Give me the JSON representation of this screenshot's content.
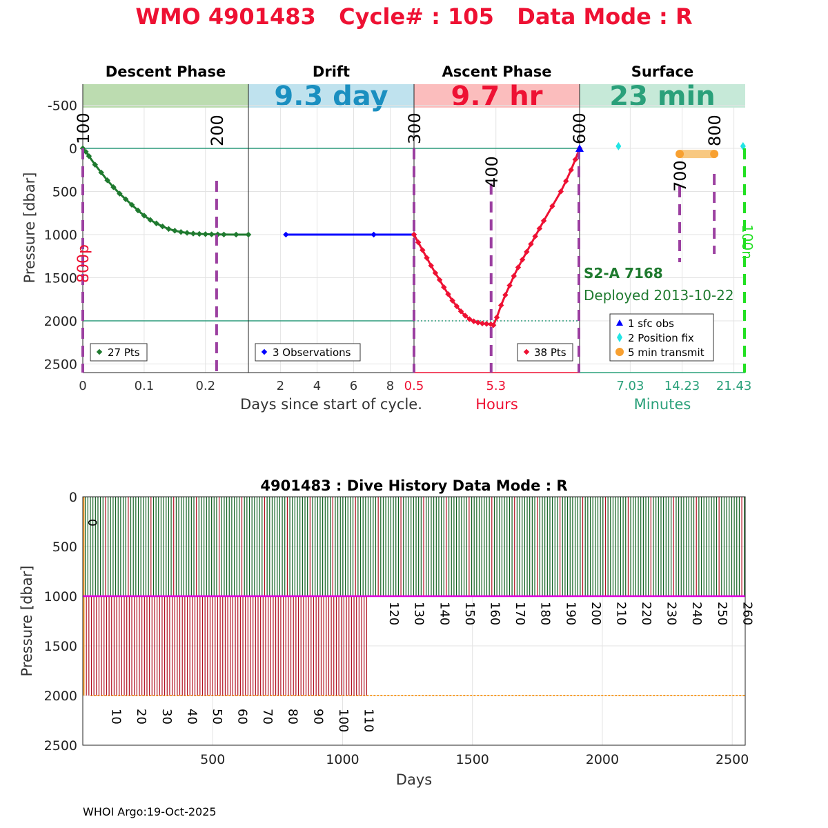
{
  "header": {
    "title": "WMO 4901483   Cycle# : 105   Data Mode : R",
    "footer": "WHOI Argo:19-Oct-2025"
  },
  "colors": {
    "title": "#ee1133",
    "descent": "#1f7a2f",
    "drift": "#0000ff",
    "ascent": "#ee1133",
    "surface_text": "#2aa07a",
    "drift_text": "#1a8fc0",
    "purple": "#9b3fa0",
    "orange": "#f8a030",
    "cyan": "#22e5e5",
    "green_dash": "#22e022",
    "magenta": "#e000e0",
    "dark_red": "#b01020",
    "dark_green": "#106020"
  },
  "phases": [
    {
      "name": "Descent Phase",
      "label": "",
      "band_color": "#bcdcb0"
    },
    {
      "name": "Drift",
      "label": "9.3 day",
      "band_color": "#bfe2ee"
    },
    {
      "name": "Ascent Phase",
      "label": "9.7 hr",
      "band_color": "#fbbdbd"
    },
    {
      "name": "Surface",
      "label": "23 min",
      "band_color": "#c6e9d8"
    }
  ],
  "chart_data": [
    {
      "type": "line",
      "title": "WMO 4901483   Cycle# : 105   Data Mode : R",
      "ylabel": "Pressure [dbar]",
      "ylim": [
        -650,
        2600
      ],
      "yticks": [
        -500,
        0,
        500,
        1000,
        1500,
        2000,
        2500
      ],
      "ref_lines": [
        0,
        2000
      ],
      "panels": [
        {
          "name": "Descent Phase",
          "xlim": [
            0,
            0.27
          ],
          "xticks": [
            {
              "v": 0,
              "label": "0"
            },
            {
              "v": 0.1,
              "label": "0.1"
            },
            {
              "v": 0.2,
              "label": "0.2"
            }
          ],
          "series": [
            {
              "name": "27 Pts",
              "x": [
                0,
                0.005,
                0.01,
                0.02,
                0.03,
                0.04,
                0.05,
                0.06,
                0.07,
                0.08,
                0.09,
                0.1,
                0.11,
                0.12,
                0.13,
                0.14,
                0.15,
                0.16,
                0.17,
                0.18,
                0.19,
                0.2,
                0.21,
                0.22,
                0.23,
                0.25,
                0.27
              ],
              "y": [
                0,
                40,
                90,
                190,
                280,
                370,
                450,
                525,
                590,
                655,
                720,
                780,
                830,
                870,
                905,
                935,
                955,
                970,
                980,
                988,
                992,
                995,
                997,
                998,
                999,
                1000,
                1000
              ]
            }
          ],
          "legend": "27 Pts",
          "markers": [
            {
              "x": 0,
              "label": "100"
            },
            {
              "x": 0.217,
              "label": "200"
            }
          ],
          "annotation": "800p"
        },
        {
          "name": "Drift",
          "xlim": [
            0.25,
            9.3
          ],
          "xticks": [
            {
              "v": 2,
              "label": "2"
            },
            {
              "v": 4,
              "label": "4"
            },
            {
              "v": 6,
              "label": "6"
            },
            {
              "v": 8,
              "label": "8"
            }
          ],
          "series": [
            {
              "name": "3 Observations",
              "x": [
                2.3,
                7.1,
                9.3
              ],
              "y": [
                1000,
                1000,
                1000
              ]
            }
          ],
          "legend": "3 Observations"
        },
        {
          "name": "Ascent Phase",
          "xlim": [
            0.5,
            10.2
          ],
          "xticks": [
            {
              "v": 0.5,
              "label": "0.5"
            },
            {
              "v": 5.3,
              "label": "5.3"
            }
          ],
          "series": [
            {
              "name": "38 Pts",
              "x": [
                0.5,
                0.75,
                1.0,
                1.25,
                1.5,
                1.75,
                2.0,
                2.25,
                2.5,
                2.75,
                3.0,
                3.25,
                3.5,
                3.75,
                4.0,
                4.25,
                4.5,
                4.75,
                5.0,
                5.15,
                5.35,
                5.6,
                5.85,
                6.1,
                6.35,
                6.6,
                6.85,
                7.1,
                7.35,
                7.6,
                7.85,
                8.1,
                8.6,
                9.1,
                9.4,
                9.7,
                9.95,
                10.2
              ],
              "y": [
                1000,
                1090,
                1180,
                1270,
                1360,
                1445,
                1525,
                1610,
                1690,
                1765,
                1830,
                1890,
                1940,
                1980,
                2005,
                2020,
                2030,
                2035,
                2040,
                2050,
                1960,
                1820,
                1700,
                1590,
                1480,
                1380,
                1290,
                1200,
                1110,
                1020,
                930,
                840,
                670,
                500,
                380,
                250,
                130,
                0
              ]
            }
          ],
          "legend": "38 Pts",
          "dotted_line": 2000,
          "markers": [
            {
              "x": 0.5,
              "label": "300"
            },
            {
              "x": 5.3,
              "label": "400"
            },
            {
              "x": 10.2,
              "label": "600"
            }
          ]
        },
        {
          "name": "Surface",
          "xlim": [
            0,
            23
          ],
          "xticks": [
            {
              "v": 7.03,
              "label": "7.03"
            },
            {
              "v": 14.23,
              "label": "14.23"
            },
            {
              "v": 21.43,
              "label": "21.43"
            }
          ],
          "sfc_obs": {
            "x": 0,
            "y": 0
          },
          "position_fix": [
            {
              "x": 5.4,
              "y": -25
            },
            {
              "x": 22.7,
              "y": -25
            }
          ],
          "transmit": {
            "x": [
              13.9,
              18.7
            ],
            "y": [
              25,
              25
            ]
          },
          "markers": [
            {
              "x": 13.9,
              "label": "700"
            },
            {
              "x": 18.7,
              "label": "800"
            }
          ],
          "end_label": "100n",
          "float_label": "S2-A 7168",
          "deployed_label": "Deployed 2013-10-22",
          "legend": [
            "1 sfc obs",
            "2 Position fix",
            "5 min transmit"
          ]
        }
      ],
      "xlabel": "Days since start of cycle.",
      "xlabel_hours": "Hours",
      "xlabel_minutes": "Minutes"
    },
    {
      "type": "bar",
      "title": "4901483 : Dive History      Data Mode : R",
      "xlabel": "Days",
      "ylabel": "Pressure [dbar]",
      "xlim": [
        0,
        2550
      ],
      "ylim": [
        0,
        2500
      ],
      "xticks": [
        500,
        1000,
        1500,
        2000,
        2500
      ],
      "yticks": [
        0,
        500,
        1000,
        1500,
        2000,
        2500
      ],
      "cycles": 262,
      "deep_cycles_until": 112,
      "cycle_interval_days": 9.72,
      "parking_pressure": 1000,
      "profile_pressure_early": 2000,
      "profile_pressure_late": 1000,
      "orange_line_pressure": 2000,
      "cycle_labels_low": [
        10,
        20,
        30,
        40,
        50,
        60,
        70,
        80,
        90,
        100,
        110
      ],
      "cycle_labels_high": [
        120,
        130,
        140,
        150,
        160,
        170,
        180,
        190,
        200,
        210,
        220,
        230,
        240,
        250,
        260
      ],
      "first_label": "0"
    }
  ]
}
